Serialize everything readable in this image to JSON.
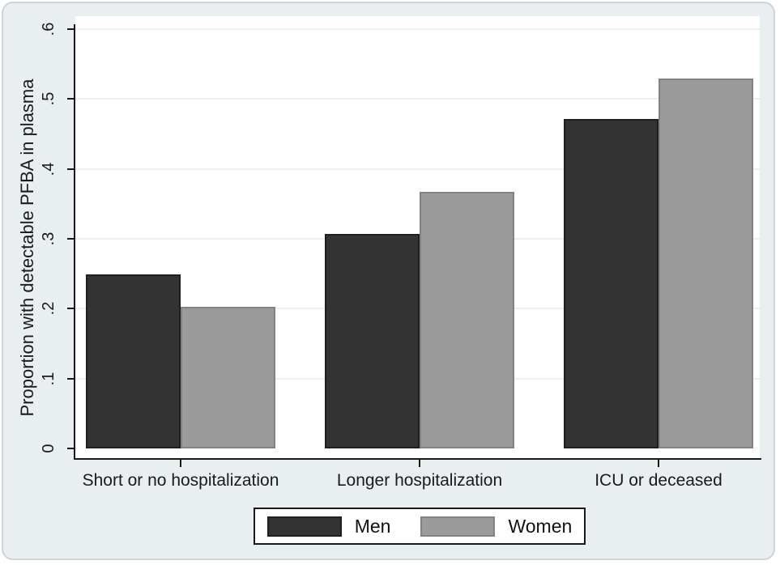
{
  "chart_data": {
    "type": "bar",
    "title": "",
    "xlabel": "",
    "ylabel": "Proportion with detectable PFBA in plasma",
    "categories": [
      "Short or no hospitalization",
      "Longer hospitalization",
      "ICU or deceased"
    ],
    "series": [
      {
        "name": "Men",
        "color": "#333333",
        "border_color": "#1f1f1f",
        "values": [
          0.249,
          0.307,
          0.472
        ]
      },
      {
        "name": "Women",
        "color": "#9b9b9b",
        "border_color": "#828282",
        "values": [
          0.203,
          0.367,
          0.529
        ]
      }
    ],
    "ylim": [
      0,
      0.6
    ],
    "yticks": [
      0,
      0.1,
      0.2,
      0.3,
      0.4,
      0.5,
      0.6
    ],
    "ytick_labels": [
      "0",
      ".1",
      ".2",
      ".3",
      ".4",
      ".5",
      ".6"
    ],
    "grid": true,
    "legend_position": "bottom-center"
  },
  "colors": {
    "figure_background": "#e9eef1",
    "plot_background": "#ffffff",
    "frame_border": "#ccd4d8",
    "axis": "#1a1a1a",
    "gridline": "#edf0f1",
    "text": "#1a1a1a",
    "legend_background": "#ffffff",
    "legend_border": "#1a1a1a"
  }
}
